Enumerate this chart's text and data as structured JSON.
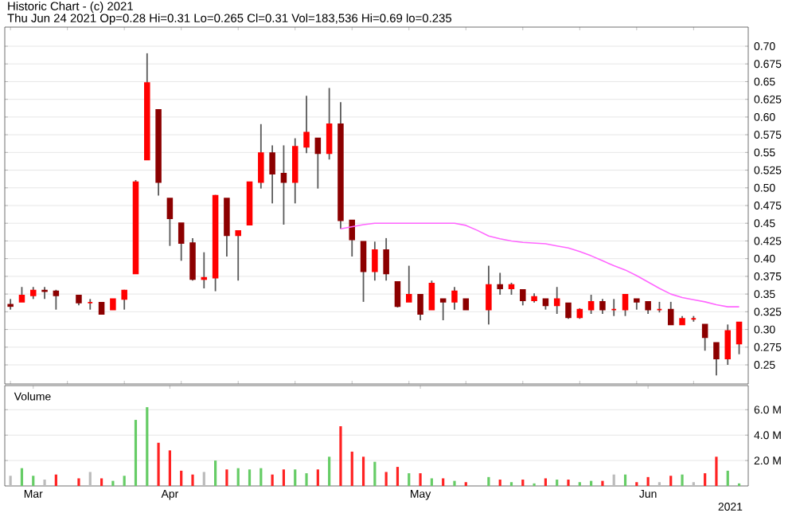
{
  "chart_data": [
    {
      "type": "candlestick",
      "title": "Historic Chart - (c) 2021",
      "subtitle": "Thu Jun 24 2021  Op=0.28  Hi=0.31  Lo=0.265  Cl=0.31  Vol=183,536  Hi=0.69  lo=0.235",
      "categories": [
        null,
        null,
        null,
        null,
        null,
        null,
        null,
        null,
        null,
        null,
        null,
        null,
        null,
        null,
        null,
        null,
        null,
        null,
        null,
        null,
        null,
        null,
        null,
        null,
        null,
        null,
        null,
        null,
        null,
        null,
        null,
        null,
        null,
        null,
        null,
        null,
        null,
        null,
        null,
        null,
        null,
        null,
        null,
        null,
        null,
        null,
        null,
        null,
        null,
        null,
        null,
        null,
        null,
        null,
        null,
        null,
        null,
        null,
        null,
        null,
        null,
        null,
        null,
        null,
        null
      ],
      "tick_labels": "y",
      "grid": "y",
      "ylim": [
        0.223,
        0.727
      ],
      "yticks": [
        0.25,
        0.275,
        {
          "value": 0.3,
          "label": "0.30"
        },
        0.325,
        0.35,
        0.375,
        {
          "value": 0.4,
          "label": "0.40"
        },
        0.425,
        0.45,
        0.475,
        {
          "value": 0.5,
          "label": "0.50"
        },
        0.525,
        0.55,
        0.575,
        {
          "value": 0.6,
          "label": "0.60"
        },
        0.625,
        0.65,
        0.675,
        {
          "value": 0.7,
          "label": "0.70"
        }
      ],
      "ohlc": [
        [
          0.335,
          0.343,
          0.328,
          0.333
        ],
        [
          0.339,
          0.36,
          0.339,
          0.348
        ],
        [
          0.348,
          0.36,
          0.343,
          0.355
        ],
        [
          0.355,
          0.36,
          0.343,
          0.354
        ],
        [
          0.354,
          0.356,
          0.328,
          0.348
        ],
        null,
        [
          0.348,
          0.348,
          0.334,
          0.338
        ],
        [
          0.338,
          0.343,
          0.328,
          0.338
        ],
        [
          0.338,
          0.338,
          0.321,
          0.322
        ],
        [
          0.328,
          0.343,
          0.328,
          0.343
        ],
        [
          0.343,
          0.356,
          0.328,
          0.355
        ],
        [
          0.379,
          0.511,
          0.379,
          0.508
        ],
        [
          0.54,
          0.69,
          0.54,
          0.648
        ],
        [
          0.61,
          0.61,
          0.489,
          0.508
        ],
        [
          0.485,
          0.485,
          0.418,
          0.457
        ],
        [
          0.45,
          0.45,
          0.397,
          0.422
        ],
        [
          0.422,
          0.429,
          0.369,
          0.371
        ],
        [
          0.371,
          0.409,
          0.358,
          0.373
        ],
        [
          0.373,
          0.49,
          0.354,
          0.489
        ],
        [
          0.485,
          0.485,
          0.403,
          0.433
        ],
        [
          0.433,
          0.44,
          0.369,
          0.439
        ],
        [
          0.448,
          0.508,
          0.448,
          0.508
        ],
        [
          0.508,
          0.59,
          0.499,
          0.549
        ],
        [
          0.549,
          0.56,
          0.478,
          0.52
        ],
        [
          0.52,
          0.56,
          0.448,
          0.508
        ],
        [
          0.508,
          0.57,
          0.478,
          0.558
        ],
        [
          0.558,
          0.63,
          0.549,
          0.578
        ],
        [
          0.57,
          0.57,
          0.499,
          0.549
        ],
        [
          0.549,
          0.641,
          0.54,
          0.59
        ],
        [
          0.59,
          0.621,
          0.442,
          0.454
        ],
        [
          0.454,
          0.454,
          0.403,
          0.427
        ],
        [
          0.424,
          0.424,
          0.339,
          0.382
        ],
        [
          0.382,
          0.424,
          0.369,
          0.412
        ],
        [
          0.412,
          0.429,
          0.369,
          0.379
        ],
        [
          0.367,
          0.367,
          0.331,
          0.333
        ],
        [
          0.339,
          0.39,
          0.339,
          0.349
        ],
        [
          0.349,
          0.349,
          0.313,
          0.322
        ],
        [
          0.328,
          0.369,
          0.328,
          0.365
        ],
        [
          0.343,
          0.343,
          0.313,
          0.339
        ],
        [
          0.339,
          0.36,
          0.328,
          0.354
        ],
        [
          0.343,
          0.343,
          0.328,
          0.328
        ],
        null,
        [
          0.328,
          0.39,
          0.307,
          0.363
        ],
        [
          0.363,
          0.38,
          0.349,
          0.358
        ],
        [
          0.358,
          0.366,
          0.349,
          0.363
        ],
        [
          0.356,
          0.356,
          0.334,
          0.341
        ],
        [
          0.341,
          0.351,
          0.338,
          0.346
        ],
        [
          0.343,
          0.343,
          0.328,
          0.334
        ],
        [
          0.334,
          0.36,
          0.322,
          0.343
        ],
        [
          0.337,
          0.337,
          0.315,
          0.317
        ],
        [
          0.317,
          0.33,
          0.315,
          0.328
        ],
        [
          0.328,
          0.349,
          0.322,
          0.339
        ],
        [
          0.339,
          0.343,
          0.322,
          0.328
        ],
        [
          0.328,
          0.343,
          0.319,
          0.328
        ],
        [
          0.328,
          0.349,
          0.319,
          0.349
        ],
        [
          0.343,
          0.343,
          0.328,
          0.339
        ],
        [
          0.339,
          0.339,
          0.322,
          0.328
        ],
        [
          0.328,
          0.339,
          0.324,
          0.328
        ],
        [
          0.328,
          0.339,
          0.307,
          0.307
        ],
        [
          0.307,
          0.319,
          0.307,
          0.315
        ],
        [
          0.315,
          0.319,
          0.311,
          0.315
        ],
        [
          0.307,
          0.307,
          0.27,
          0.289
        ],
        [
          0.281,
          0.281,
          0.235,
          0.259
        ],
        [
          0.259,
          0.307,
          0.25,
          0.298
        ],
        [
          0.28,
          0.31,
          0.265,
          0.31
        ]
      ],
      "series": [
        {
          "type": "line",
          "color": "#ff66ff",
          "values": [
            null,
            null,
            null,
            null,
            null,
            null,
            null,
            null,
            null,
            null,
            null,
            null,
            null,
            null,
            null,
            null,
            null,
            null,
            null,
            null,
            null,
            null,
            null,
            null,
            null,
            null,
            null,
            null,
            null,
            0.442,
            0.445,
            0.448,
            0.45,
            0.45,
            0.45,
            0.45,
            0.45,
            0.45,
            0.45,
            0.45,
            0.447,
            0.44,
            0.432,
            0.428,
            0.425,
            0.423,
            0.422,
            0.421,
            0.418,
            0.415,
            0.41,
            0.404,
            0.397,
            0.39,
            0.384,
            0.376,
            0.367,
            0.358,
            0.35,
            0.345,
            0.342,
            0.339,
            0.335,
            0.332,
            0.332
          ]
        }
      ]
    },
    {
      "type": "bar",
      "xlabel": "2021",
      "annotations": [
        "Volume"
      ],
      "categories": [
        null,
        null,
        "Mar",
        null,
        null,
        null,
        null,
        null,
        null,
        null,
        null,
        null,
        null,
        null,
        "Apr",
        null,
        null,
        null,
        null,
        null,
        null,
        null,
        null,
        null,
        null,
        null,
        null,
        null,
        null,
        null,
        null,
        null,
        null,
        null,
        null,
        null,
        "May",
        null,
        null,
        null,
        null,
        null,
        null,
        null,
        null,
        null,
        null,
        null,
        null,
        null,
        null,
        null,
        null,
        null,
        null,
        null,
        "Jun",
        null,
        null,
        null,
        null,
        null,
        null,
        null,
        null
      ],
      "grid": "y",
      "ylim": [
        0,
        7.9
      ],
      "yticks": [
        {
          "value": 2,
          "label": "2.0 M"
        },
        {
          "value": 4,
          "label": "4.0 M"
        },
        {
          "value": 6,
          "label": "6.0 M"
        }
      ],
      "values": [
        0.8,
        1.4,
        0.8,
        0.5,
        0.9,
        null,
        0.6,
        1.1,
        0.6,
        0.4,
        0.8,
        5.2,
        6.2,
        3.4,
        2.8,
        1.2,
        0.9,
        1.1,
        2.0,
        1.3,
        1.4,
        1.3,
        1.4,
        0.9,
        1.3,
        1.3,
        1.0,
        1.3,
        2.3,
        4.7,
        2.7,
        2.3,
        1.9,
        1.1,
        1.5,
        1.0,
        1.0,
        0.6,
        0.6,
        0.4,
        0.3,
        null,
        0.7,
        0.5,
        0.3,
        0.5,
        0.2,
        0.6,
        0.5,
        0.5,
        0.3,
        0.4,
        0.4,
        0.9,
        0.9,
        0.3,
        0.7,
        0.3,
        0.8,
        0.9,
        0.3,
        1.0,
        2.3,
        1.2,
        0.2
      ],
      "colors": [
        "#bbbbbb",
        "#66cc66",
        "#66cc66",
        "#bbbbbb",
        "#ff2222",
        null,
        "#ff2222",
        "#bbbbbb",
        "#ff2222",
        "#66cc66",
        "#66cc66",
        "#66cc66",
        "#66cc66",
        "#ff2222",
        "#ff2222",
        "#ff2222",
        "#ff2222",
        "#bbbbbb",
        "#66cc66",
        "#ff2222",
        "#66cc66",
        "#66cc66",
        "#66cc66",
        "#ff2222",
        "#ff2222",
        "#66cc66",
        "#66cc66",
        "#ff2222",
        "#66cc66",
        "#ff2222",
        "#ff2222",
        "#ff2222",
        "#66cc66",
        "#ff2222",
        "#ff2222",
        "#66cc66",
        "#ff2222",
        "#66cc66",
        "#ff2222",
        "#66cc66",
        "#ff2222",
        null,
        "#66cc66",
        "#ff2222",
        "#66cc66",
        "#ff2222",
        "#66cc66",
        "#ff2222",
        "#66cc66",
        "#ff2222",
        "#66cc66",
        "#66cc66",
        "#ff2222",
        "#bbbbbb",
        "#66cc66",
        "#ff2222",
        "#ff2222",
        "#bbbbbb",
        "#ff2222",
        "#66cc66",
        "#bbbbbb",
        "#ff2222",
        "#ff2222",
        "#66cc66",
        "#66cc66"
      ]
    }
  ]
}
